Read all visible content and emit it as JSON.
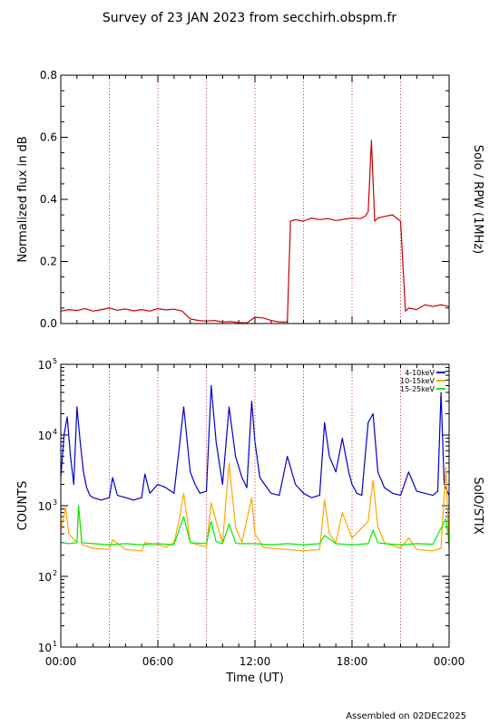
{
  "page": {
    "title": "Survey of 23 JAN 2023 from secchirh.obspm.fr",
    "footer": "Assembled on 02DEC2025"
  },
  "chart_data": [
    {
      "type": "line",
      "right_label": "Solo / RPW (1MHz)",
      "ylabel": "Normalized flux in dB",
      "ylim": [
        0.0,
        0.8
      ],
      "yticks": [
        "0.0",
        "0.2",
        "0.4",
        "0.6",
        "0.8"
      ],
      "xlim_hours": [
        0,
        24
      ],
      "grid": "dotted vertical every 3 h",
      "series": [
        {
          "color": "#cc0000",
          "x_hours": [
            0.0,
            0.5,
            1.0,
            1.5,
            2.0,
            2.5,
            3.0,
            3.5,
            4.0,
            4.5,
            5.0,
            5.5,
            6.0,
            6.5,
            7.0,
            7.5,
            8.0,
            8.5,
            9.0,
            9.5,
            10.0,
            10.5,
            11.0,
            11.5,
            12.0,
            12.5,
            13.0,
            13.5,
            14.0,
            14.2,
            14.5,
            15.0,
            15.5,
            16.0,
            16.5,
            17.0,
            17.5,
            18.0,
            18.5,
            18.8,
            19.0,
            19.2,
            19.4,
            19.6,
            20.0,
            20.5,
            21.0,
            21.3,
            21.5,
            22.0,
            22.5,
            23.0,
            23.5,
            24.0
          ],
          "y": [
            0.04,
            0.045,
            0.042,
            0.048,
            0.04,
            0.045,
            0.05,
            0.043,
            0.047,
            0.041,
            0.045,
            0.04,
            0.048,
            0.044,
            0.046,
            0.04,
            0.015,
            0.01,
            0.008,
            0.01,
            0.005,
            0.006,
            0.003,
            0.002,
            0.02,
            0.018,
            0.01,
            0.005,
            0.005,
            0.33,
            0.335,
            0.33,
            0.34,
            0.335,
            0.338,
            0.332,
            0.336,
            0.34,
            0.338,
            0.345,
            0.36,
            0.59,
            0.33,
            0.34,
            0.345,
            0.35,
            0.33,
            0.04,
            0.05,
            0.045,
            0.06,
            0.055,
            0.06,
            0.055
          ]
        }
      ]
    },
    {
      "type": "line",
      "right_label": "SolO/STIX",
      "ylabel": "COUNTS",
      "xlabel": "Time (UT)",
      "yscale": "log",
      "ylim": [
        10,
        100000
      ],
      "yticks": [
        {
          "base": "10",
          "exp": "1",
          "value": 10
        },
        {
          "base": "10",
          "exp": "2",
          "value": 100
        },
        {
          "base": "10",
          "exp": "3",
          "value": 1000
        },
        {
          "base": "10",
          "exp": "4",
          "value": 10000
        },
        {
          "base": "10",
          "exp": "5",
          "value": 100000
        }
      ],
      "xticks": [
        "00:00",
        "06:00",
        "12:00",
        "18:00",
        "00:00"
      ],
      "xlim_hours": [
        0,
        24
      ],
      "legend_position": "top-right",
      "series": [
        {
          "name": "4-10keV",
          "color": "#0000cc",
          "x_hours": [
            0.0,
            0.2,
            0.4,
            0.6,
            0.8,
            1.0,
            1.2,
            1.4,
            1.6,
            1.8,
            2.0,
            2.5,
            3.0,
            3.2,
            3.5,
            4.0,
            4.5,
            5.0,
            5.2,
            5.5,
            6.0,
            6.5,
            7.0,
            7.3,
            7.6,
            8.0,
            8.3,
            8.6,
            9.0,
            9.3,
            9.6,
            10.0,
            10.4,
            10.8,
            11.2,
            11.5,
            11.8,
            12.0,
            12.3,
            12.6,
            13.0,
            13.5,
            14.0,
            14.5,
            15.0,
            15.5,
            16.0,
            16.3,
            16.6,
            17.0,
            17.4,
            17.8,
            18.0,
            18.3,
            18.6,
            19.0,
            19.3,
            19.6,
            20.0,
            20.5,
            21.0,
            21.5,
            22.0,
            22.5,
            23.0,
            23.3,
            23.5,
            23.7,
            24.0
          ],
          "y": [
            2500,
            10000,
            18000,
            5000,
            2000,
            25000,
            8000,
            3000,
            1800,
            1400,
            1300,
            1200,
            1300,
            2500,
            1400,
            1300,
            1200,
            1300,
            2800,
            1500,
            2000,
            1800,
            1500,
            6000,
            25000,
            3000,
            2000,
            1500,
            1600,
            50000,
            8000,
            2000,
            25000,
            5000,
            2500,
            1800,
            30000,
            8000,
            2500,
            2000,
            1500,
            1400,
            5000,
            2000,
            1500,
            1300,
            1400,
            15000,
            5000,
            3000,
            9000,
            3000,
            2000,
            1500,
            1400,
            15000,
            20000,
            3000,
            1800,
            1500,
            1400,
            3000,
            1600,
            1500,
            1400,
            1600,
            40000,
            2000,
            1400
          ]
        },
        {
          "name": "10-15keV",
          "color": "#ffa500",
          "x_hours": [
            0.0,
            0.3,
            0.5,
            1.0,
            1.1,
            1.3,
            2.0,
            3.0,
            3.2,
            4.0,
            5.0,
            5.2,
            6.0,
            6.5,
            7.0,
            7.3,
            7.6,
            8.0,
            9.0,
            9.3,
            9.6,
            10.0,
            10.4,
            10.8,
            11.2,
            11.8,
            12.0,
            12.5,
            13.0,
            14.0,
            15.0,
            16.0,
            16.3,
            16.6,
            17.0,
            17.4,
            18.0,
            19.0,
            19.3,
            19.6,
            20.0,
            21.0,
            21.5,
            22.0,
            23.0,
            23.5,
            23.8,
            24.0
          ],
          "y": [
            450,
            950,
            400,
            300,
            1000,
            280,
            250,
            240,
            330,
            240,
            230,
            300,
            280,
            260,
            300,
            600,
            1500,
            300,
            260,
            1100,
            600,
            300,
            4000,
            500,
            300,
            1300,
            400,
            260,
            250,
            240,
            230,
            240,
            1200,
            400,
            300,
            800,
            350,
            600,
            2300,
            500,
            300,
            250,
            350,
            240,
            230,
            250,
            3500,
            240
          ]
        },
        {
          "name": "15-25keV",
          "color": "#00ee00",
          "x_hours": [
            0.0,
            0.5,
            1.0,
            1.1,
            1.3,
            2.0,
            3.0,
            4.0,
            5.0,
            6.0,
            7.0,
            7.6,
            8.0,
            9.0,
            9.3,
            9.6,
            10.0,
            10.4,
            10.8,
            11.0,
            12.0,
            13.0,
            14.0,
            15.0,
            16.0,
            16.3,
            17.0,
            18.0,
            19.0,
            19.3,
            19.6,
            20.0,
            21.0,
            22.0,
            23.0,
            23.8,
            24.0
          ],
          "y": [
            300,
            290,
            300,
            1000,
            300,
            290,
            280,
            290,
            280,
            290,
            280,
            700,
            300,
            290,
            600,
            310,
            290,
            550,
            300,
            290,
            290,
            280,
            290,
            280,
            290,
            380,
            290,
            280,
            290,
            450,
            300,
            290,
            280,
            290,
            285,
            650,
            290
          ]
        }
      ]
    }
  ]
}
